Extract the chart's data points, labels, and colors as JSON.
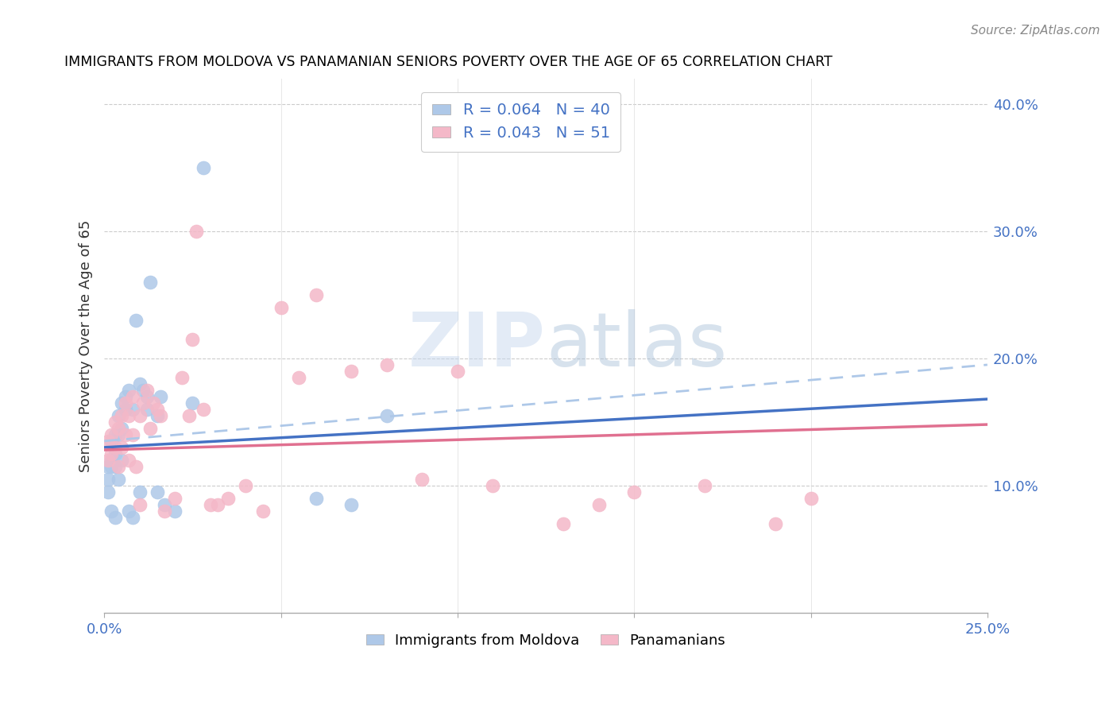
{
  "title": "IMMIGRANTS FROM MOLDOVA VS PANAMANIAN SENIORS POVERTY OVER THE AGE OF 65 CORRELATION CHART",
  "source": "Source: ZipAtlas.com",
  "ylabel": "Seniors Poverty Over the Age of 65",
  "xlim": [
    0.0,
    0.25
  ],
  "ylim": [
    0.0,
    0.42
  ],
  "legend_label1": "Immigrants from Moldova",
  "legend_label2": "Panamanians",
  "blue_color": "#aec8e8",
  "pink_color": "#f4b8c8",
  "blue_line_color": "#4472c4",
  "pink_line_color": "#e07090",
  "blue_dashed_color": "#aec8e8",
  "blue_line": {
    "x0": 0.0,
    "y0": 0.13,
    "x1": 0.25,
    "y1": 0.168
  },
  "pink_line": {
    "x0": 0.0,
    "y0": 0.128,
    "x1": 0.25,
    "y1": 0.148
  },
  "dashed_line": {
    "x0": 0.0,
    "y0": 0.135,
    "x1": 0.25,
    "y1": 0.195
  },
  "scatter_blue_x": [
    0.001,
    0.001,
    0.001,
    0.002,
    0.002,
    0.002,
    0.002,
    0.003,
    0.003,
    0.003,
    0.003,
    0.004,
    0.004,
    0.004,
    0.005,
    0.005,
    0.005,
    0.006,
    0.006,
    0.007,
    0.007,
    0.008,
    0.008,
    0.009,
    0.01,
    0.01,
    0.011,
    0.012,
    0.013,
    0.015,
    0.016,
    0.017,
    0.02,
    0.025,
    0.028,
    0.06,
    0.07,
    0.08,
    0.012,
    0.015
  ],
  "scatter_blue_y": [
    0.115,
    0.105,
    0.095,
    0.135,
    0.12,
    0.115,
    0.08,
    0.14,
    0.125,
    0.115,
    0.075,
    0.155,
    0.14,
    0.105,
    0.165,
    0.145,
    0.12,
    0.17,
    0.16,
    0.175,
    0.08,
    0.16,
    0.075,
    0.23,
    0.18,
    0.095,
    0.175,
    0.16,
    0.26,
    0.155,
    0.17,
    0.085,
    0.08,
    0.165,
    0.35,
    0.09,
    0.085,
    0.155,
    0.17,
    0.095
  ],
  "scatter_pink_x": [
    0.001,
    0.001,
    0.002,
    0.002,
    0.003,
    0.003,
    0.004,
    0.004,
    0.005,
    0.005,
    0.006,
    0.006,
    0.007,
    0.007,
    0.008,
    0.008,
    0.009,
    0.01,
    0.01,
    0.011,
    0.012,
    0.013,
    0.014,
    0.015,
    0.016,
    0.017,
    0.02,
    0.022,
    0.024,
    0.026,
    0.03,
    0.035,
    0.04,
    0.05,
    0.055,
    0.06,
    0.07,
    0.09,
    0.1,
    0.11,
    0.13,
    0.14,
    0.15,
    0.17,
    0.19,
    0.025,
    0.028,
    0.032,
    0.045,
    0.08,
    0.2
  ],
  "scatter_pink_y": [
    0.135,
    0.12,
    0.14,
    0.125,
    0.15,
    0.13,
    0.145,
    0.115,
    0.155,
    0.13,
    0.165,
    0.14,
    0.155,
    0.12,
    0.17,
    0.14,
    0.115,
    0.155,
    0.085,
    0.165,
    0.175,
    0.145,
    0.165,
    0.16,
    0.155,
    0.08,
    0.09,
    0.185,
    0.155,
    0.3,
    0.085,
    0.09,
    0.1,
    0.24,
    0.185,
    0.25,
    0.19,
    0.105,
    0.19,
    0.1,
    0.07,
    0.085,
    0.095,
    0.1,
    0.07,
    0.215,
    0.16,
    0.085,
    0.08,
    0.195,
    0.09
  ]
}
